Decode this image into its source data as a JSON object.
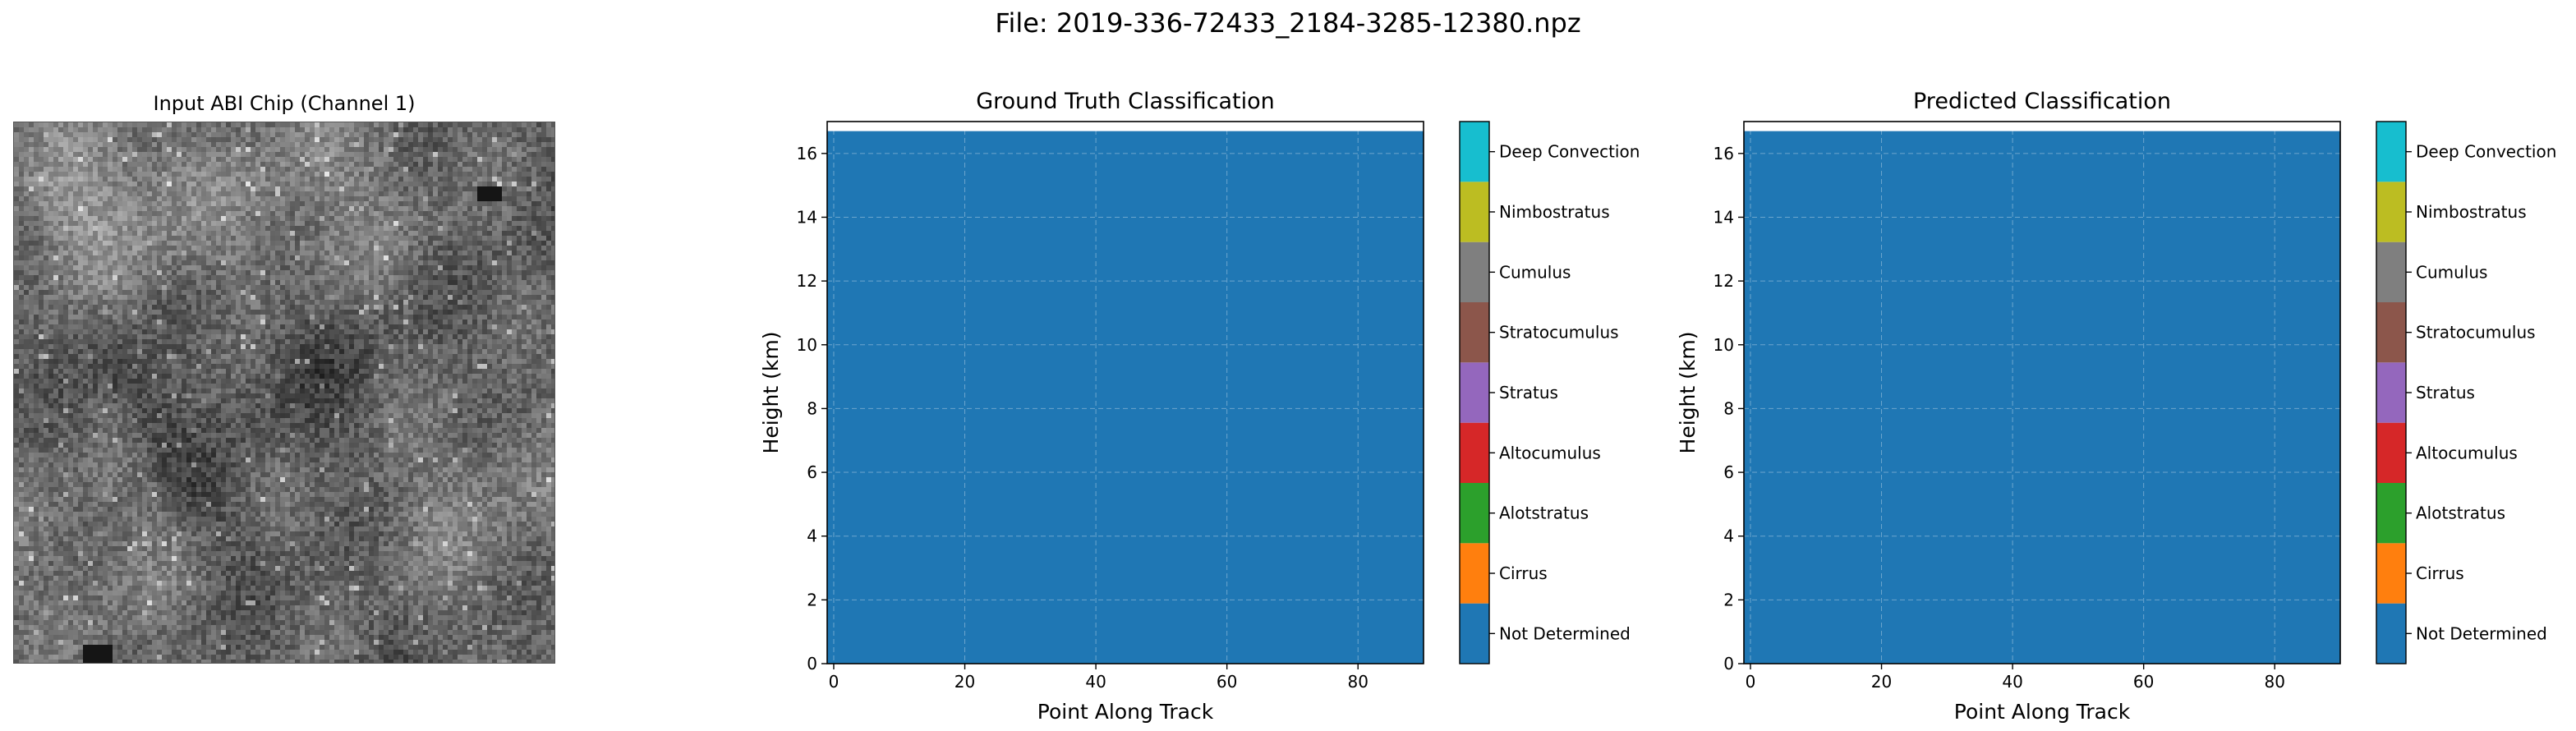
{
  "suptitle": "File: 2019-336-72433_2184-3285-12380.npz",
  "abi": {
    "title": "Input ABI Chip (Channel 1)"
  },
  "classes": [
    {
      "name": "Not Determined",
      "color": "#1f77b4"
    },
    {
      "name": "Cirrus",
      "color": "#ff7f0e"
    },
    {
      "name": "Alotstratus",
      "color": "#2ca02c"
    },
    {
      "name": "Altocumulus",
      "color": "#d62728"
    },
    {
      "name": "Stratus",
      "color": "#9467bd"
    },
    {
      "name": "Stratocumulus",
      "color": "#8c564b"
    },
    {
      "name": "Cumulus",
      "color": "#7f7f7f"
    },
    {
      "name": "Nimbostratus",
      "color": "#bcbd22"
    },
    {
      "name": "Deep Convection",
      "color": "#17becf"
    }
  ],
  "chart_data": [
    {
      "type": "heatmap",
      "title": "Ground Truth Classification",
      "xlabel": "Point Along Track",
      "ylabel": "Height (km)",
      "xlim": [
        -1,
        90
      ],
      "ylim": [
        0,
        17
      ],
      "xticks": [
        0,
        20,
        40,
        60,
        80
      ],
      "yticks": [
        0,
        2,
        4,
        6,
        8,
        10,
        12,
        14,
        16
      ],
      "filled_extent": {
        "x": [
          -1,
          90
        ],
        "y": [
          0,
          16.7
        ]
      },
      "value_class": "Not Determined",
      "grid": true,
      "colorbar": true
    },
    {
      "type": "heatmap",
      "title": "Predicted Classification",
      "xlabel": "Point Along Track",
      "ylabel": "Height (km)",
      "xlim": [
        -1,
        90
      ],
      "ylim": [
        0,
        17
      ],
      "xticks": [
        0,
        20,
        40,
        60,
        80
      ],
      "yticks": [
        0,
        2,
        4,
        6,
        8,
        10,
        12,
        14,
        16
      ],
      "filled_extent": {
        "x": [
          -1,
          90
        ],
        "y": [
          0,
          16.7
        ]
      },
      "value_class": "Not Determined",
      "grid": true,
      "colorbar": true
    }
  ]
}
